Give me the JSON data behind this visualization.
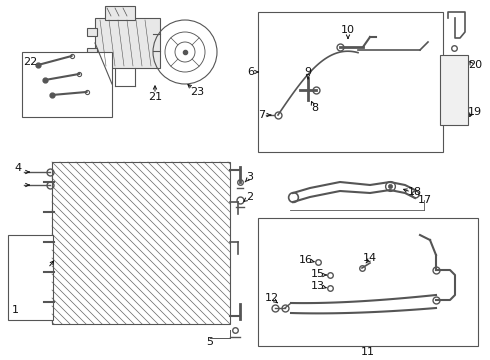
{
  "bg_color": "#ffffff",
  "fig_width": 4.9,
  "fig_height": 3.6,
  "dpi": 100,
  "gray": "#555555",
  "black": "#111111",
  "lw": 0.8
}
